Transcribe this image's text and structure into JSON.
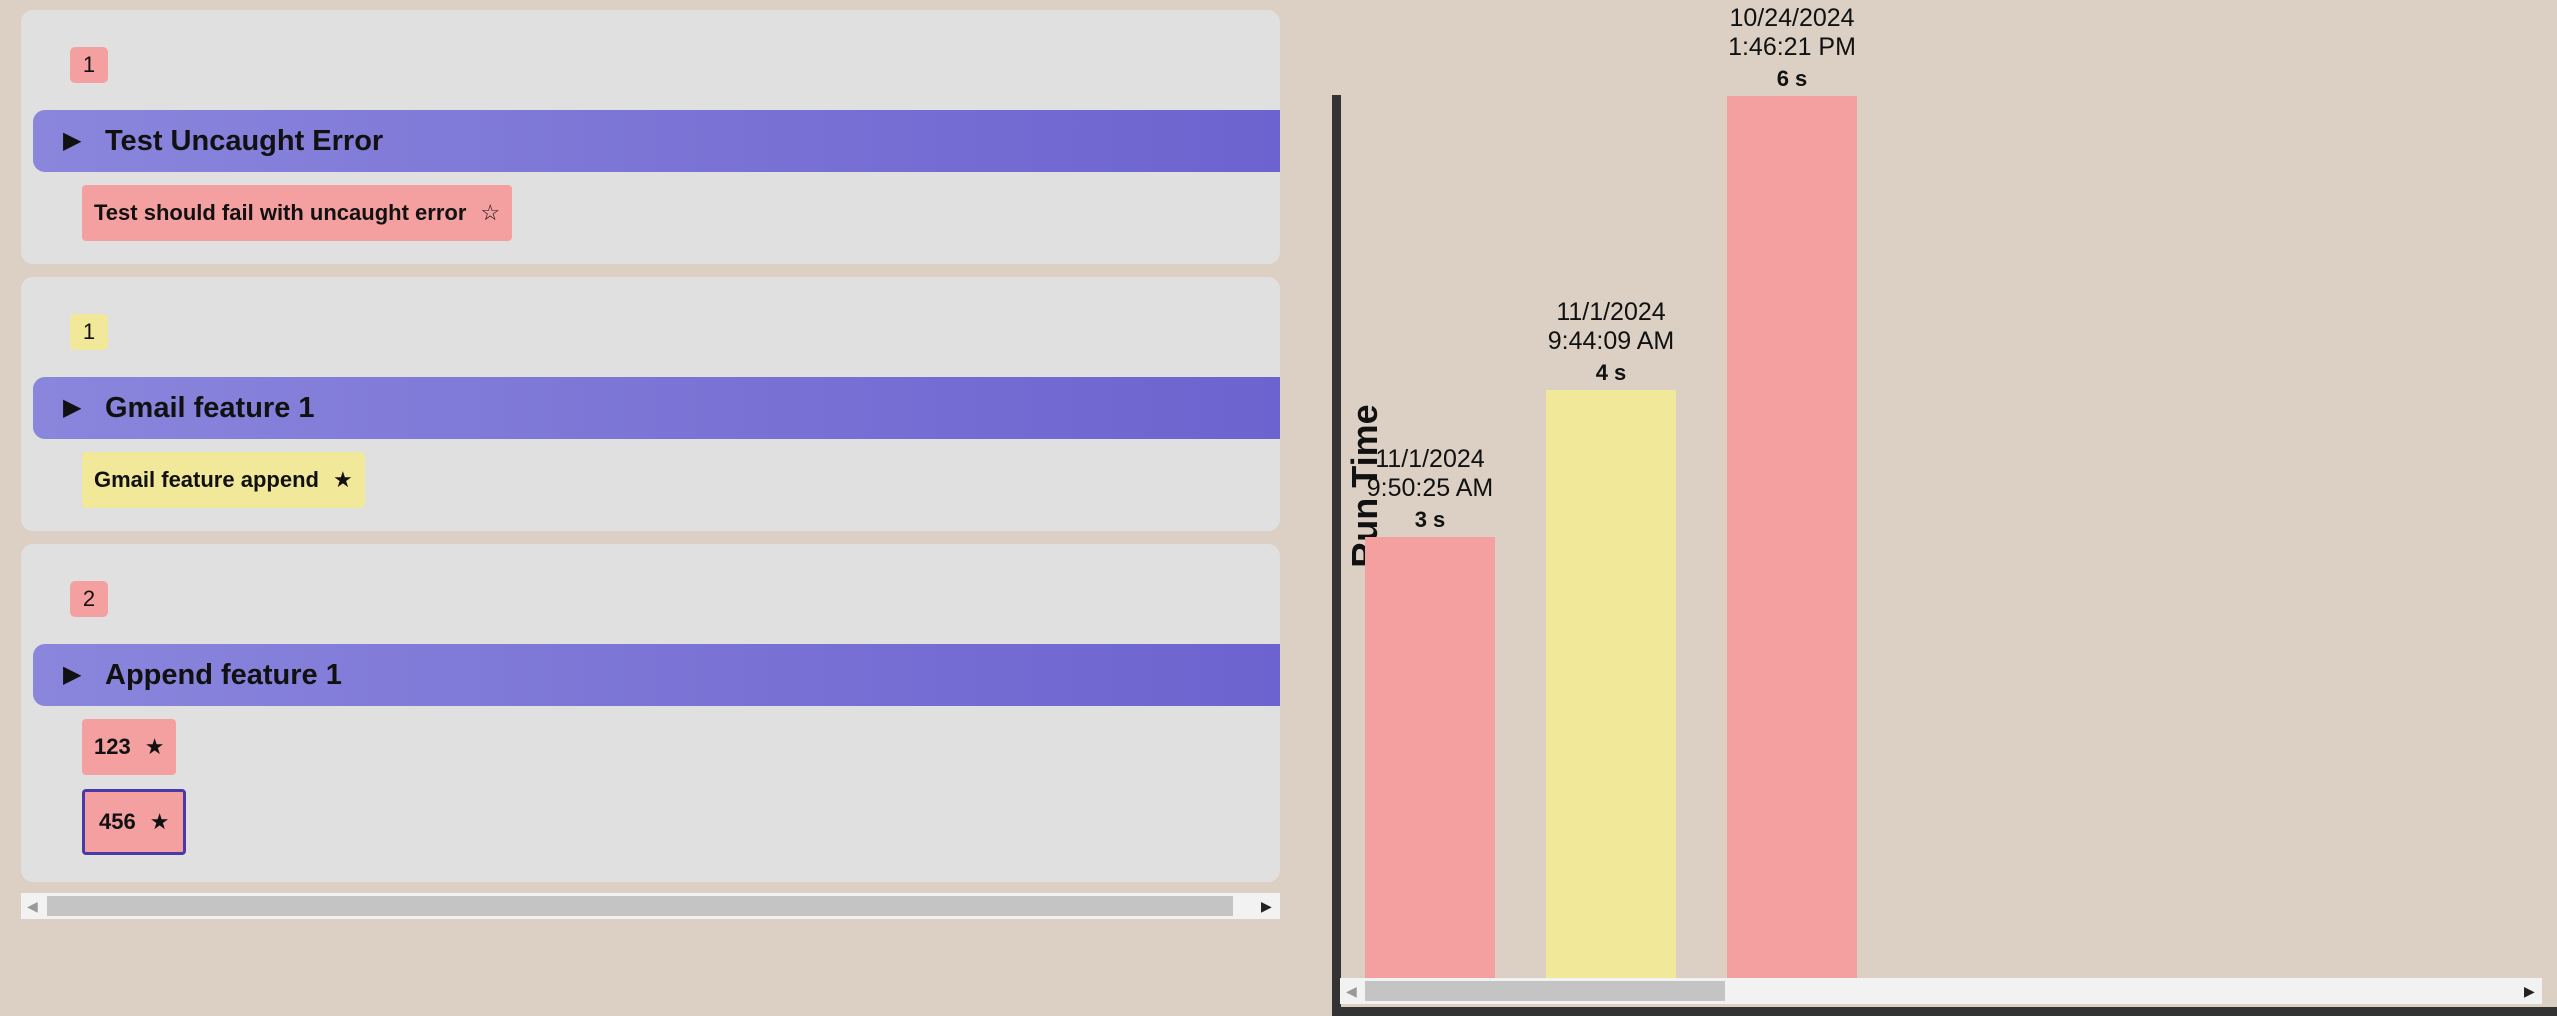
{
  "features": [
    {
      "count": "1",
      "status": "failed",
      "title": "Test Uncaught Error",
      "expand_icon": "triangle-right-icon",
      "scenarios": [
        {
          "label": "Test should fail with uncaught error",
          "star": "☆",
          "status": "failed",
          "selected": false
        }
      ]
    },
    {
      "count": "1",
      "status": "skipped",
      "title": "Gmail feature 1",
      "expand_icon": "triangle-right-icon",
      "scenarios": [
        {
          "label": "Gmail feature append",
          "star": "★",
          "status": "skipped",
          "selected": false
        }
      ]
    },
    {
      "count": "2",
      "status": "failed",
      "title": "Append feature 1",
      "expand_icon": "triangle-right-icon",
      "scenarios": [
        {
          "label": "123",
          "star": "★",
          "status": "failed",
          "selected": false
        },
        {
          "label": "456",
          "star": "★",
          "status": "failed",
          "selected": true
        }
      ]
    }
  ],
  "colors": {
    "failed": "#f4a0a0",
    "skipped": "#f2e89a",
    "feature_bar_start": "#8a86dc",
    "feature_bar_end": "#6c62cf",
    "background": "#dcd0c4",
    "selected_border": "#4a3aa8"
  },
  "chart_data": {
    "type": "bar",
    "title": "",
    "xlabel": "",
    "ylabel": "Run Time",
    "unit": "s",
    "categories": [
      "11/1/2024 9:50:25 AM",
      "11/1/2024 9:44:09 AM",
      "10/24/2024 1:46:21 PM"
    ],
    "category_lines": [
      [
        "11/1/2024",
        "9:50:25 AM"
      ],
      [
        "11/1/2024",
        "9:44:09 AM"
      ],
      [
        "10/24/2024",
        "1:46:21 PM"
      ]
    ],
    "values": [
      3,
      4,
      6
    ],
    "value_labels": [
      "3 s",
      "4 s",
      "6 s"
    ],
    "bar_status": [
      "failed",
      "skipped",
      "failed"
    ],
    "ylim": [
      0,
      6
    ],
    "grid": false,
    "legend": "none"
  }
}
